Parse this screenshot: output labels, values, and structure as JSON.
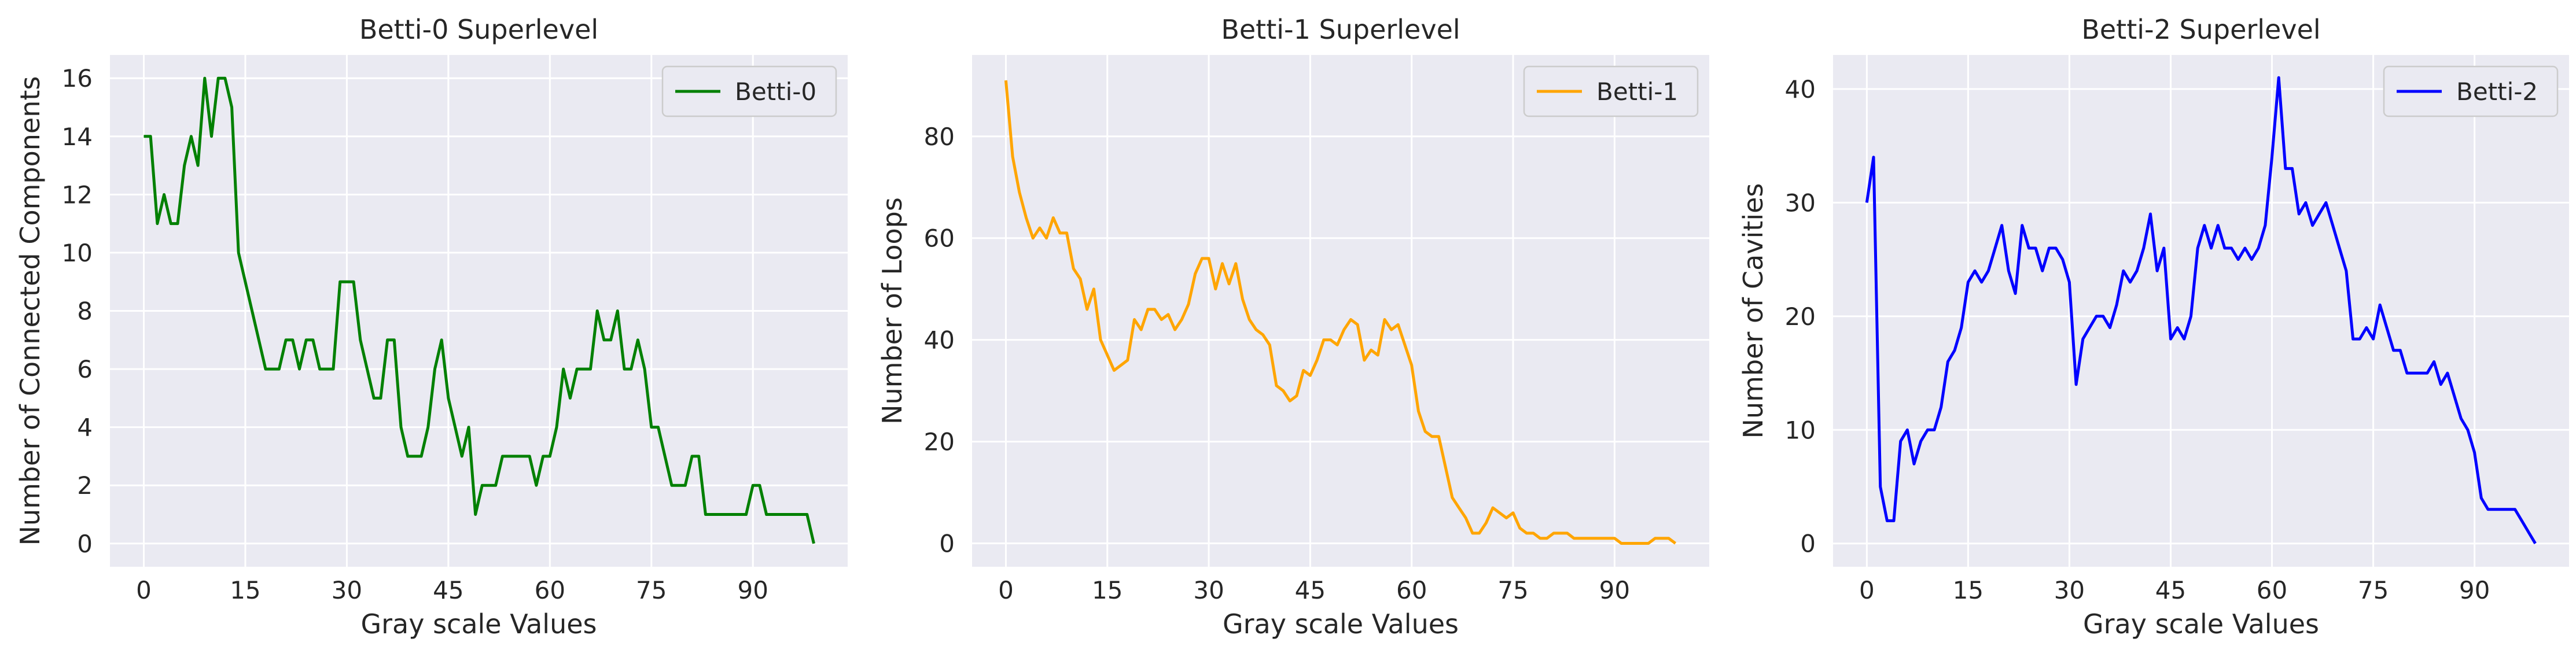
{
  "chart_data": [
    {
      "type": "line",
      "title": "Betti-0 Superlevel",
      "xlabel": "Gray scale Values",
      "ylabel": "Number of Connected Components",
      "xlim": [
        -5,
        104
      ],
      "ylim": [
        -0.8,
        16.8
      ],
      "xticks": [
        0,
        15,
        30,
        45,
        60,
        75,
        90
      ],
      "yticks": [
        0,
        2,
        4,
        6,
        8,
        10,
        12,
        14,
        16
      ],
      "legend": "top-right",
      "grid": true,
      "series": [
        {
          "name": "Betti-0",
          "color": "#008000",
          "x": [
            0,
            1,
            2,
            3,
            4,
            5,
            6,
            7,
            8,
            9,
            10,
            11,
            12,
            13,
            14,
            15,
            16,
            17,
            18,
            19,
            20,
            21,
            22,
            23,
            24,
            25,
            26,
            27,
            28,
            29,
            30,
            31,
            32,
            33,
            34,
            35,
            36,
            37,
            38,
            39,
            40,
            41,
            42,
            43,
            44,
            45,
            46,
            47,
            48,
            49,
            50,
            51,
            52,
            53,
            54,
            55,
            56,
            57,
            58,
            59,
            60,
            61,
            62,
            63,
            64,
            65,
            66,
            67,
            68,
            69,
            70,
            71,
            72,
            73,
            74,
            75,
            76,
            77,
            78,
            79,
            80,
            81,
            82,
            83,
            84,
            85,
            86,
            87,
            88,
            89,
            90,
            91,
            92,
            93,
            94,
            95,
            96,
            97,
            98,
            99
          ],
          "y": [
            14,
            14,
            11,
            12,
            11,
            11,
            13,
            14,
            13,
            16,
            14,
            16,
            16,
            15,
            10,
            9,
            8,
            7,
            6,
            6,
            6,
            7,
            7,
            6,
            7,
            7,
            6,
            6,
            6,
            9,
            9,
            9,
            7,
            6,
            5,
            5,
            7,
            7,
            4,
            3,
            3,
            3,
            4,
            6,
            7,
            5,
            4,
            3,
            4,
            1,
            2,
            2,
            2,
            3,
            3,
            3,
            3,
            3,
            2,
            3,
            3,
            4,
            6,
            5,
            6,
            6,
            6,
            8,
            7,
            7,
            8,
            6,
            6,
            7,
            6,
            4,
            4,
            3,
            2,
            2,
            2,
            3,
            3,
            1,
            1,
            1,
            1,
            1,
            1,
            1,
            2,
            2,
            1,
            1,
            1,
            1,
            1,
            1,
            1,
            0
          ]
        }
      ]
    },
    {
      "type": "line",
      "title": "Betti-1 Superlevel",
      "xlabel": "Gray scale Values",
      "ylabel": "Number of Loops",
      "xlim": [
        -5,
        104
      ],
      "ylim": [
        -4.6,
        96
      ],
      "xticks": [
        0,
        15,
        30,
        45,
        60,
        75,
        90
      ],
      "yticks": [
        0,
        20,
        40,
        60,
        80
      ],
      "legend": "top-right",
      "grid": true,
      "series": [
        {
          "name": "Betti-1",
          "color": "#ffa500",
          "x": [
            0,
            1,
            2,
            3,
            4,
            5,
            6,
            7,
            8,
            9,
            10,
            11,
            12,
            13,
            14,
            15,
            16,
            17,
            18,
            19,
            20,
            21,
            22,
            23,
            24,
            25,
            26,
            27,
            28,
            29,
            30,
            31,
            32,
            33,
            34,
            35,
            36,
            37,
            38,
            39,
            40,
            41,
            42,
            43,
            44,
            45,
            46,
            47,
            48,
            49,
            50,
            51,
            52,
            53,
            54,
            55,
            56,
            57,
            58,
            59,
            60,
            61,
            62,
            63,
            64,
            65,
            66,
            67,
            68,
            69,
            70,
            71,
            72,
            73,
            74,
            75,
            76,
            77,
            78,
            79,
            80,
            81,
            82,
            83,
            84,
            85,
            86,
            87,
            88,
            89,
            90,
            91,
            92,
            93,
            94,
            95,
            96,
            97,
            98,
            99
          ],
          "y": [
            91,
            76,
            69,
            64,
            60,
            62,
            60,
            64,
            61,
            61,
            54,
            52,
            46,
            50,
            40,
            37,
            34,
            35,
            36,
            44,
            42,
            46,
            46,
            44,
            45,
            42,
            44,
            47,
            53,
            56,
            56,
            50,
            55,
            51,
            55,
            48,
            44,
            42,
            41,
            39,
            31,
            30,
            28,
            29,
            34,
            33,
            36,
            40,
            40,
            39,
            42,
            44,
            43,
            36,
            38,
            37,
            44,
            42,
            43,
            39,
            35,
            26,
            22,
            21,
            21,
            15,
            9,
            7,
            5,
            2,
            2,
            4,
            7,
            6,
            5,
            6,
            3,
            2,
            2,
            1,
            1,
            2,
            2,
            2,
            1,
            1,
            1,
            1,
            1,
            1,
            1,
            0,
            0,
            0,
            0,
            0,
            1,
            1,
            1,
            0
          ]
        }
      ]
    },
    {
      "type": "line",
      "title": "Betti-2 Superlevel",
      "xlabel": "Gray scale Values",
      "ylabel": "Number of Cavities",
      "xlim": [
        -5,
        104
      ],
      "ylim": [
        -2.05,
        43
      ],
      "xticks": [
        0,
        15,
        30,
        45,
        60,
        75,
        90
      ],
      "yticks": [
        0,
        10,
        20,
        30,
        40
      ],
      "legend": "top-right",
      "grid": true,
      "series": [
        {
          "name": "Betti-2",
          "color": "#0000ff",
          "x": [
            0,
            1,
            2,
            3,
            4,
            5,
            6,
            7,
            8,
            9,
            10,
            11,
            12,
            13,
            14,
            15,
            16,
            17,
            18,
            19,
            20,
            21,
            22,
            23,
            24,
            25,
            26,
            27,
            28,
            29,
            30,
            31,
            32,
            33,
            34,
            35,
            36,
            37,
            38,
            39,
            40,
            41,
            42,
            43,
            44,
            45,
            46,
            47,
            48,
            49,
            50,
            51,
            52,
            53,
            54,
            55,
            56,
            57,
            58,
            59,
            60,
            61,
            62,
            63,
            64,
            65,
            66,
            67,
            68,
            69,
            70,
            71,
            72,
            73,
            74,
            75,
            76,
            77,
            78,
            79,
            80,
            81,
            82,
            83,
            84,
            85,
            86,
            87,
            88,
            89,
            90,
            91,
            92,
            93,
            94,
            95,
            96,
            97,
            98,
            99
          ],
          "y": [
            30,
            34,
            5,
            2,
            2,
            9,
            10,
            7,
            9,
            10,
            10,
            12,
            16,
            17,
            19,
            23,
            24,
            23,
            24,
            26,
            28,
            24,
            22,
            28,
            26,
            26,
            24,
            26,
            26,
            25,
            23,
            14,
            18,
            19,
            20,
            20,
            19,
            21,
            24,
            23,
            24,
            26,
            29,
            24,
            26,
            18,
            19,
            18,
            20,
            26,
            28,
            26,
            28,
            26,
            26,
            25,
            26,
            25,
            26,
            28,
            34,
            41,
            33,
            33,
            29,
            30,
            28,
            29,
            30,
            28,
            26,
            24,
            18,
            18,
            19,
            18,
            21,
            19,
            17,
            17,
            15,
            15,
            15,
            15,
            16,
            14,
            15,
            13,
            11,
            10,
            8,
            4,
            3,
            3,
            3,
            3,
            3,
            2,
            1,
            0
          ]
        }
      ]
    }
  ]
}
